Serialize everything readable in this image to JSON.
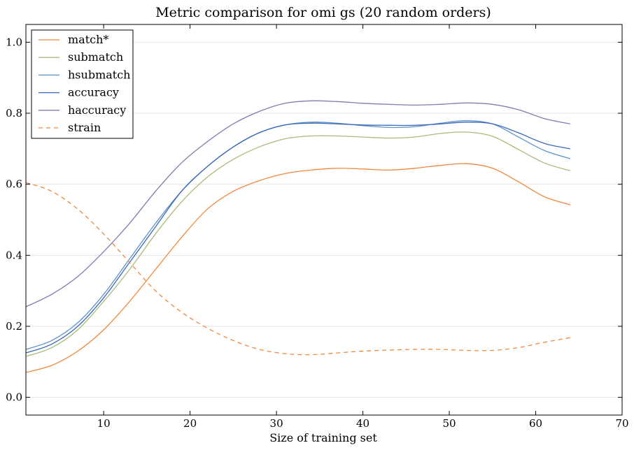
{
  "chart_data": {
    "type": "line",
    "title": "Metric comparison for omi gs (20 random orders)",
    "xlabel": "Size of training set",
    "ylabel": "",
    "xlim": [
      1,
      70
    ],
    "ylim": [
      -0.05,
      1.05
    ],
    "xticks": [
      10,
      20,
      30,
      40,
      50,
      60,
      70
    ],
    "yticks": [
      0.0,
      0.2,
      0.4,
      0.6,
      0.8,
      1.0
    ],
    "ytick_labels": [
      "0.0",
      "0.2",
      "0.4",
      "0.6",
      "0.8",
      "1.0"
    ],
    "grid": "horizontal",
    "legend_position": "upper-left",
    "series": [
      {
        "name": "match*",
        "color": "#f0883f",
        "dash": "solid",
        "x": [
          1,
          4,
          7,
          10,
          13,
          16,
          19,
          22,
          25,
          28,
          31,
          34,
          37,
          40,
          43,
          46,
          49,
          52,
          55,
          58,
          61,
          64
        ],
        "y": [
          0.07,
          0.09,
          0.13,
          0.19,
          0.27,
          0.36,
          0.45,
          0.53,
          0.58,
          0.61,
          0.63,
          0.64,
          0.645,
          0.643,
          0.64,
          0.645,
          0.653,
          0.658,
          0.645,
          0.607,
          0.565,
          0.542
        ]
      },
      {
        "name": "submatch",
        "color": "#a8bc79",
        "dash": "solid",
        "x": [
          1,
          4,
          7,
          10,
          13,
          16,
          19,
          22,
          25,
          28,
          31,
          34,
          37,
          40,
          43,
          46,
          49,
          52,
          55,
          58,
          61,
          64
        ],
        "y": [
          0.115,
          0.14,
          0.19,
          0.27,
          0.36,
          0.46,
          0.55,
          0.62,
          0.67,
          0.705,
          0.728,
          0.736,
          0.736,
          0.733,
          0.73,
          0.733,
          0.743,
          0.747,
          0.735,
          0.698,
          0.66,
          0.638
        ]
      },
      {
        "name": "hsubmatch",
        "color": "#5f94c9",
        "dash": "solid",
        "x": [
          1,
          4,
          7,
          10,
          13,
          16,
          19,
          22,
          25,
          28,
          31,
          34,
          37,
          40,
          43,
          46,
          49,
          52,
          55,
          58,
          61,
          64
        ],
        "y": [
          0.135,
          0.16,
          0.21,
          0.29,
          0.39,
          0.49,
          0.58,
          0.65,
          0.705,
          0.745,
          0.767,
          0.775,
          0.772,
          0.765,
          0.76,
          0.762,
          0.772,
          0.779,
          0.77,
          0.733,
          0.695,
          0.672
        ]
      },
      {
        "name": "accuracy",
        "color": "#3b67bb",
        "dash": "solid",
        "x": [
          1,
          4,
          7,
          10,
          13,
          16,
          19,
          22,
          25,
          28,
          31,
          34,
          37,
          40,
          43,
          46,
          49,
          52,
          55,
          58,
          61,
          64
        ],
        "y": [
          0.125,
          0.15,
          0.2,
          0.28,
          0.38,
          0.48,
          0.58,
          0.65,
          0.705,
          0.745,
          0.767,
          0.772,
          0.77,
          0.767,
          0.766,
          0.766,
          0.77,
          0.775,
          0.77,
          0.745,
          0.715,
          0.7
        ]
      },
      {
        "name": "haccuracy",
        "color": "#8579b0",
        "dash": "solid",
        "x": [
          1,
          4,
          7,
          10,
          13,
          16,
          19,
          22,
          25,
          28,
          31,
          34,
          37,
          40,
          43,
          46,
          49,
          52,
          55,
          58,
          61,
          64
        ],
        "y": [
          0.255,
          0.29,
          0.34,
          0.41,
          0.49,
          0.58,
          0.66,
          0.72,
          0.77,
          0.805,
          0.828,
          0.835,
          0.833,
          0.828,
          0.825,
          0.823,
          0.825,
          0.829,
          0.825,
          0.81,
          0.785,
          0.77
        ]
      },
      {
        "name": "strain",
        "color": "#f0883f",
        "dash": "dashed",
        "x": [
          1,
          4,
          7,
          10,
          13,
          16,
          19,
          22,
          25,
          28,
          31,
          34,
          37,
          40,
          43,
          46,
          49,
          52,
          55,
          58,
          61,
          64
        ],
        "y": [
          0.605,
          0.58,
          0.53,
          0.46,
          0.38,
          0.3,
          0.24,
          0.195,
          0.16,
          0.135,
          0.123,
          0.12,
          0.125,
          0.13,
          0.133,
          0.135,
          0.135,
          0.132,
          0.132,
          0.14,
          0.155,
          0.168
        ]
      }
    ]
  }
}
